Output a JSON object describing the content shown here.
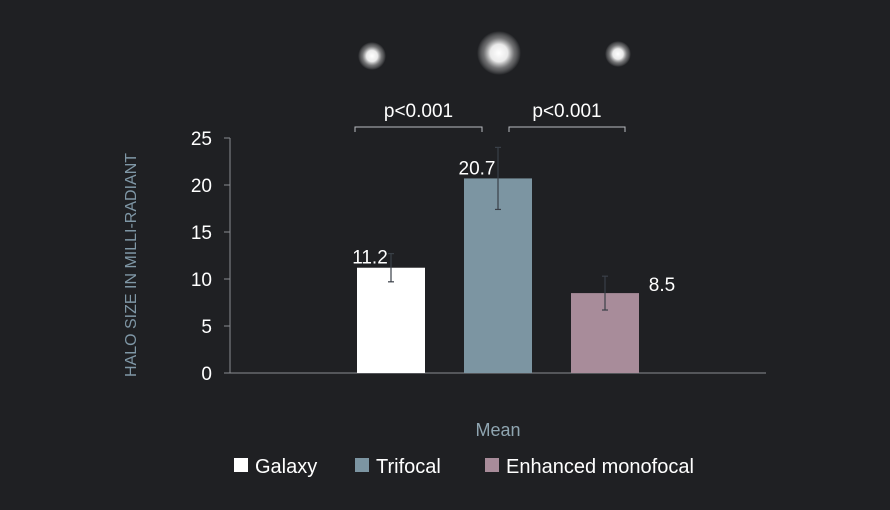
{
  "colors": {
    "background": "#1f2023",
    "axis": "#8a8c90",
    "text": "#ffffff",
    "ylabel": "#7f97a6",
    "xlabel": "#8fa5b1",
    "galaxy": "#ffffff",
    "trifocal": "#7c95a2",
    "monofocal": "#a88c9a",
    "error_bar": "#3a4048",
    "bracket": "#b9bcc0"
  },
  "chart_data": {
    "type": "bar",
    "xlabel": "Mean",
    "ylabel": "HALO SIZE IN MILLI-RADIANT",
    "ylim": [
      0,
      25
    ],
    "yticks": [
      0,
      5,
      10,
      15,
      20,
      25
    ],
    "grid": false,
    "legend_position": "bottom",
    "series": [
      {
        "name": "Galaxy",
        "value": 11.2,
        "label": "11.2",
        "error_low": 9.7,
        "error_high": 12.7
      },
      {
        "name": "Trifocal",
        "value": 20.7,
        "label": "20.7",
        "error_low": 17.4,
        "error_high": 24.0
      },
      {
        "name": "Enhanced monofocal",
        "value": 8.5,
        "label": "8.5",
        "error_low": 6.7,
        "error_high": 10.3
      }
    ],
    "annotations": [
      {
        "text": "p<0.001",
        "from": "Galaxy",
        "to": "Trifocal"
      },
      {
        "text": "p<0.001",
        "from": "Trifocal",
        "to": "Enhanced monofocal"
      }
    ],
    "halo_images": [
      "Galaxy",
      "Trifocal",
      "Enhanced monofocal"
    ]
  }
}
